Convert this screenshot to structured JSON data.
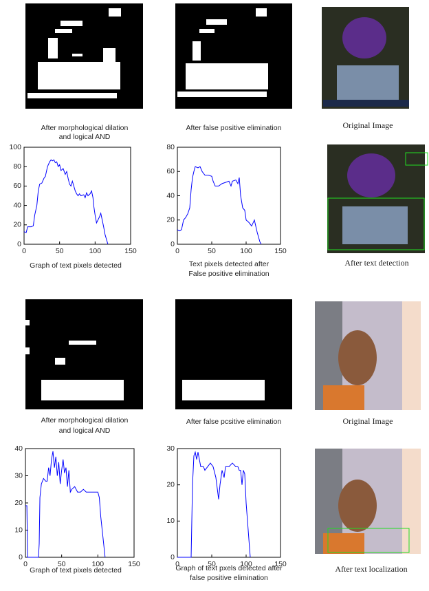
{
  "images": [
    {
      "caption": [
        "After morphological dilation",
        "and logical AND"
      ]
    },
    {
      "caption": [
        "After false positive elimination"
      ]
    },
    {
      "caption": [
        "Original Image"
      ]
    },
    {
      "caption": [
        "After text detection"
      ]
    },
    {
      "caption": [
        "After morphological dilation",
        "and logical AND"
      ]
    },
    {
      "caption": [
        "After false pcsitive elimination"
      ]
    },
    {
      "caption": [
        "Original Image"
      ]
    },
    {
      "caption": [
        "After text localization"
      ]
    }
  ],
  "chart_data": [
    {
      "type": "line",
      "caption": [
        "Graph of text pixels detected"
      ],
      "color": "#0000ff",
      "x": [
        0,
        3,
        5,
        10,
        13,
        15,
        18,
        20,
        22,
        25,
        28,
        30,
        33,
        36,
        38,
        40,
        42,
        44,
        46,
        48,
        50,
        52,
        55,
        58,
        60,
        62,
        64,
        66,
        68,
        70,
        72,
        74,
        76,
        78,
        80,
        84,
        86,
        88,
        90,
        93,
        95,
        97,
        98,
        100,
        102,
        104,
        106,
        108,
        110,
        112,
        114,
        116,
        118
      ],
      "values": [
        13,
        12,
        18,
        18,
        19,
        30,
        40,
        55,
        62,
        63,
        68,
        70,
        80,
        85,
        87,
        86,
        87,
        84,
        85,
        80,
        82,
        76,
        78,
        72,
        75,
        68,
        62,
        60,
        65,
        60,
        55,
        52,
        50,
        52,
        50,
        51,
        48,
        53,
        50,
        52,
        55,
        48,
        40,
        30,
        22,
        25,
        28,
        32,
        25,
        18,
        10,
        5,
        0
      ],
      "xlim": [
        0,
        150
      ],
      "xticks": [
        0,
        50,
        100,
        150
      ],
      "ylim": [
        0,
        100
      ],
      "yticks": [
        0,
        20,
        40,
        60,
        80,
        100
      ]
    },
    {
      "type": "line",
      "caption": [
        "Text pixels detected after",
        "False positive elimination"
      ],
      "color": "#0000ff",
      "x": [
        0,
        3,
        6,
        9,
        12,
        15,
        18,
        20,
        22,
        24,
        26,
        30,
        33,
        36,
        40,
        45,
        50,
        52,
        55,
        60,
        65,
        70,
        75,
        78,
        80,
        85,
        88,
        90,
        92,
        95,
        98,
        100,
        104,
        108,
        112,
        116,
        120,
        122
      ],
      "values": [
        12,
        11,
        12,
        20,
        22,
        25,
        30,
        45,
        55,
        60,
        64,
        63,
        64,
        60,
        57,
        57,
        56,
        52,
        48,
        48,
        50,
        51,
        52,
        48,
        52,
        53,
        50,
        55,
        40,
        30,
        28,
        20,
        18,
        15,
        20,
        10,
        2,
        0
      ],
      "xlim": [
        0,
        150
      ],
      "xticks": [
        0,
        50,
        100,
        150
      ],
      "ylim": [
        0,
        80
      ],
      "yticks": [
        0,
        20,
        40,
        60,
        80
      ]
    },
    {
      "type": "line",
      "caption": [
        "Graph of text pixels detected"
      ],
      "color": "#0000ff",
      "x": [
        0,
        2,
        3,
        18,
        19,
        20,
        22,
        25,
        28,
        30,
        32,
        34,
        36,
        38,
        40,
        42,
        44,
        46,
        48,
        50,
        52,
        54,
        56,
        58,
        60,
        62,
        64,
        68,
        72,
        76,
        80,
        84,
        90,
        95,
        100,
        102,
        104,
        106,
        108,
        110
      ],
      "values": [
        19,
        19,
        0,
        0,
        5,
        22,
        27,
        29,
        28,
        28,
        33,
        30,
        36,
        39,
        33,
        37,
        30,
        35,
        27,
        32,
        36,
        31,
        33,
        26,
        32,
        24,
        25,
        26,
        24,
        24,
        25,
        24,
        24,
        24,
        24,
        22,
        15,
        10,
        5,
        0
      ],
      "xlim": [
        0,
        150
      ],
      "xticks": [
        0,
        50,
        100,
        150
      ],
      "ylim": [
        0,
        40
      ],
      "yticks": [
        0,
        10,
        20,
        30,
        40
      ]
    },
    {
      "type": "line",
      "caption": [
        "Graph of text pxels detected after",
        "false positive elimination"
      ],
      "color": "#0000ff",
      "x": [
        0,
        20,
        22,
        24,
        26,
        28,
        30,
        32,
        34,
        38,
        40,
        44,
        48,
        52,
        56,
        58,
        60,
        62,
        65,
        68,
        70,
        75,
        80,
        85,
        88,
        90,
        92,
        94,
        96,
        98,
        100,
        102,
        104,
        106
      ],
      "values": [
        0,
        0,
        20,
        28,
        29,
        27,
        29,
        27,
        25,
        25,
        24,
        25,
        26,
        25,
        22,
        19,
        16,
        20,
        24,
        22,
        25,
        25,
        26,
        25,
        25,
        24,
        24,
        20,
        24,
        23,
        15,
        10,
        5,
        0
      ],
      "xlim": [
        0,
        150
      ],
      "xticks": [
        0,
        50,
        100,
        150
      ],
      "ylim": [
        0,
        30
      ],
      "yticks": [
        0,
        10,
        20,
        30
      ]
    }
  ]
}
